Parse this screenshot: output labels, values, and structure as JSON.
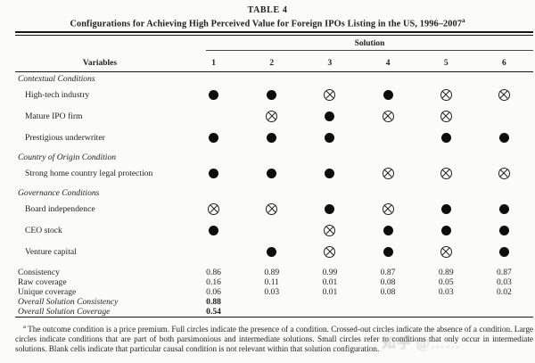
{
  "title": {
    "table_number": "TABLE 4",
    "text": "Configurations for Achieving High Perceived Value for Foreign IPOs Listing in the US, 1996–2007",
    "superscript": "a"
  },
  "header": {
    "spanner": "Solution",
    "variables_label": "Variables",
    "solution_columns": [
      "1",
      "2",
      "3",
      "4",
      "5",
      "6"
    ]
  },
  "table": {
    "rows": [
      {
        "type": "group",
        "label": "Contextual Conditions"
      },
      {
        "type": "condition",
        "label": "High-tech industry",
        "cells": [
          "filled",
          "filled",
          "crossed",
          "filled",
          "crossed",
          "crossed"
        ]
      },
      {
        "type": "condition",
        "label": "Mature IPO firm",
        "cells": [
          "",
          "crossed",
          "filled",
          "crossed",
          "crossed",
          ""
        ]
      },
      {
        "type": "condition",
        "label": "Prestigious underwriter",
        "cells": [
          "filled",
          "filled",
          "filled",
          "",
          "filled",
          "filled"
        ]
      },
      {
        "type": "group",
        "label": "Country of Origin Condition"
      },
      {
        "type": "condition",
        "label": "Strong home country legal protection",
        "cells": [
          "filled",
          "filled",
          "filled",
          "crossed",
          "crossed",
          "crossed"
        ]
      },
      {
        "type": "group",
        "label": "Governance Conditions"
      },
      {
        "type": "condition",
        "label": "Board independence",
        "cells": [
          "crossed",
          "crossed",
          "filled",
          "crossed",
          "filled",
          "filled"
        ]
      },
      {
        "type": "condition",
        "label": "CEO stock",
        "cells": [
          "filled",
          "",
          "crossed",
          "filled",
          "filled",
          "filled"
        ]
      },
      {
        "type": "condition",
        "label": "Venture capital",
        "cells": [
          "",
          "filled",
          "crossed",
          "filled",
          "crossed",
          "filled"
        ]
      },
      {
        "type": "stat",
        "label": "Consistency",
        "cells": [
          "0.86",
          "0.89",
          "0.99",
          "0.87",
          "0.89",
          "0.87"
        ]
      },
      {
        "type": "stat",
        "label": "Raw coverage",
        "cells": [
          "0.16",
          "0.11",
          "0.01",
          "0.08",
          "0.05",
          "0.03"
        ]
      },
      {
        "type": "stat",
        "label": "Unique coverage",
        "cells": [
          "0.06",
          "0.03",
          "0.01",
          "0.08",
          "0.03",
          "0.02"
        ]
      },
      {
        "type": "stat-overall",
        "label": "Overall Solution Consistency",
        "cells": [
          "0.88",
          "",
          "",
          "",
          "",
          ""
        ]
      },
      {
        "type": "stat-overall",
        "label": "Overall Solution Coverage",
        "cells": [
          "0.54",
          "",
          "",
          "",
          "",
          ""
        ]
      }
    ],
    "symbol_legend": {
      "filled": "full circle — presence of a condition",
      "crossed": "crossed-out circle — absence of a condition",
      "blank": "condition not relevant in that solution configuration"
    }
  },
  "footnote": {
    "marker": "a",
    "text": "The outcome condition is a price premium. Full circles indicate the presence of a condition. Crossed-out circles indicate the absence of a condition. Large circles indicate conditions that are part of both parsimonious and intermediate solutions. Small circles refer to conditions that only occur in intermediate solutions. Blank cells indicate that particular causal condition is not relevant within that solution configuration."
  },
  "watermark": {
    "text": "知乎 @……"
  },
  "colors": {
    "background": "#fbfbfa",
    "text": "#1f1f1f",
    "rule": "#161616",
    "watermark": "#8f8f8f"
  }
}
